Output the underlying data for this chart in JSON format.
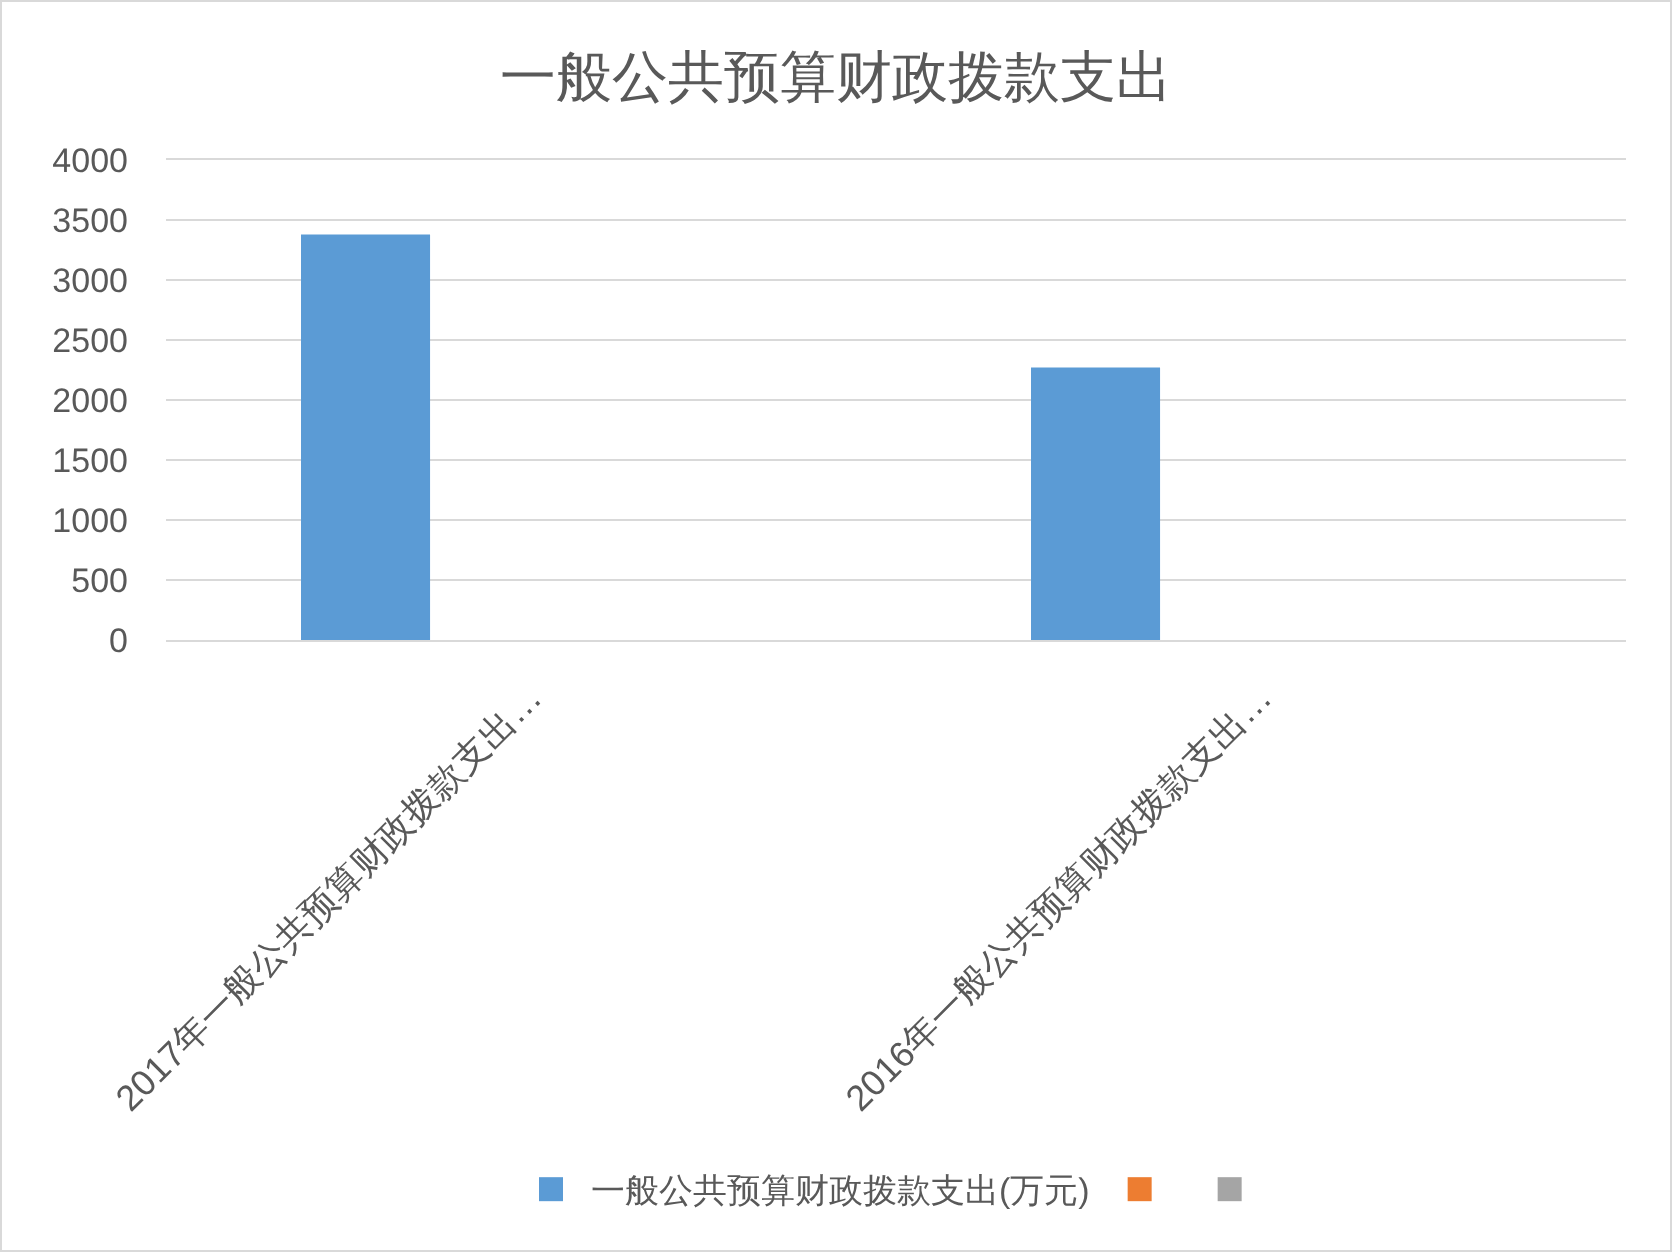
{
  "chart_data": {
    "type": "bar",
    "title": "一般公共预算财政拨款支出",
    "categories": [
      "2017年一般公共预算财政拨款支出…",
      "2016年一般公共预算财政拨款支出…"
    ],
    "series": [
      {
        "name": "一般公共预算财政拨款支出(万元)",
        "color": "#5b9bd5",
        "values": [
          3380,
          2270
        ]
      },
      {
        "color": "#ed7d31",
        "values": [
          null,
          null
        ]
      },
      {
        "color": "#a5a5a5",
        "values": [
          null,
          null
        ]
      }
    ],
    "ylim": [
      0,
      4000
    ],
    "yticks": [
      0,
      500,
      1000,
      1500,
      2000,
      2500,
      3000,
      3500,
      4000
    ],
    "grid": "y",
    "legend": "bottom"
  }
}
